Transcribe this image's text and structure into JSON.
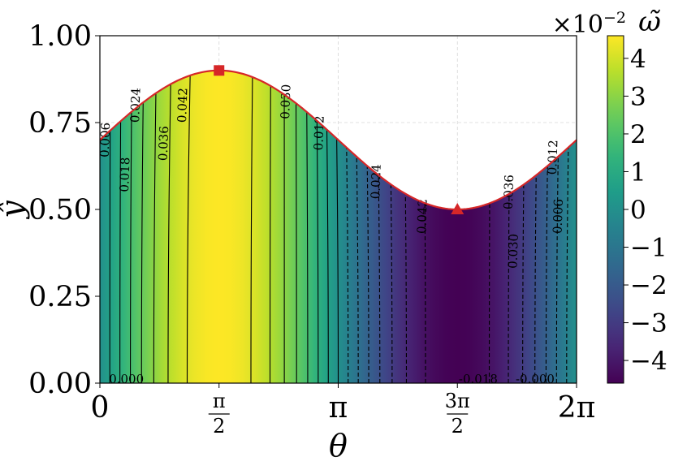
{
  "chart_data": {
    "type": "heatmap",
    "title": "",
    "xlabel": "θ",
    "ylabel": "ŷ",
    "xlim": [
      0,
      6.2832
    ],
    "ylim": [
      0,
      1
    ],
    "x_ticks": [
      {
        "value": 0,
        "label": "0"
      },
      {
        "value": 1.5708,
        "label": "π/2",
        "num": "π",
        "den": "2"
      },
      {
        "value": 3.1416,
        "label": "π"
      },
      {
        "value": 4.7124,
        "label": "3π/2",
        "num": "3π",
        "den": "2"
      },
      {
        "value": 6.2832,
        "label": "2π"
      }
    ],
    "y_ticks": [
      {
        "value": 0,
        "label": "0.00"
      },
      {
        "value": 0.25,
        "label": "0.25"
      },
      {
        "value": 0.5,
        "label": "0.50"
      },
      {
        "value": 0.75,
        "label": "0.75"
      },
      {
        "value": 1.0,
        "label": "1.00"
      }
    ],
    "field": {
      "name": "ω̃",
      "form": "amplitude*sin(theta)",
      "amplitude": 0.046
    },
    "boundary": {
      "form": "0.7 + 0.2*sin(theta)",
      "mean": 0.7,
      "amplitude": 0.2,
      "color": "#d62728"
    },
    "markers": [
      {
        "shape": "square",
        "x": 1.5708,
        "y": 0.9,
        "color": "#d62728"
      },
      {
        "shape": "triangle",
        "x": 4.7124,
        "y": 0.5,
        "color": "#d62728"
      }
    ],
    "contour_levels": [
      -0.042,
      -0.036,
      -0.03,
      -0.024,
      -0.018,
      -0.012,
      -0.006,
      0.0,
      0.006,
      0.012,
      0.018,
      0.024,
      0.03,
      0.036,
      0.042
    ],
    "contour_labels": [
      {
        "text": "0.006",
        "x": 0.08,
        "y": 0.7
      },
      {
        "text": "0.018",
        "x": 0.34,
        "y": 0.6
      },
      {
        "text": "0.024",
        "x": 0.48,
        "y": 0.8
      },
      {
        "text": "0.036",
        "x": 0.85,
        "y": 0.69
      },
      {
        "text": "0.042",
        "x": 1.1,
        "y": 0.8
      },
      {
        "text": "0.030",
        "x": 2.46,
        "y": 0.81
      },
      {
        "text": "0.012",
        "x": 2.9,
        "y": 0.72
      },
      {
        "text": "0.024",
        "x": 3.65,
        "y": 0.58
      },
      {
        "text": "0.042",
        "x": 4.26,
        "y": 0.48
      },
      {
        "text": "0.036",
        "x": 5.4,
        "y": 0.55
      },
      {
        "text": "0.030",
        "x": 5.46,
        "y": 0.38
      },
      {
        "text": "0.012",
        "x": 5.98,
        "y": 0.65
      },
      {
        "text": "0.006",
        "x": 6.05,
        "y": 0.48
      },
      {
        "text": "0.000",
        "x": 0.12,
        "y": 0.005
      },
      {
        "text": "-0.018",
        "x": 4.73,
        "y": 0.005
      },
      {
        "text": "-0.000",
        "x": 5.48,
        "y": 0.005
      }
    ],
    "colorbar": {
      "label": "ω̃",
      "multiplier": "×10",
      "multiplier_exp": "−2",
      "range": [
        -4.6,
        4.6
      ],
      "ticks": [
        {
          "value": 4,
          "label": "4"
        },
        {
          "value": 3,
          "label": "3"
        },
        {
          "value": 2,
          "label": "2"
        },
        {
          "value": 1,
          "label": "1"
        },
        {
          "value": 0,
          "label": "0"
        },
        {
          "value": -1,
          "label": "−1"
        },
        {
          "value": -2,
          "label": "−2"
        },
        {
          "value": -3,
          "label": "−3"
        },
        {
          "value": -4,
          "label": "−4"
        }
      ],
      "colormap": "viridis"
    }
  }
}
